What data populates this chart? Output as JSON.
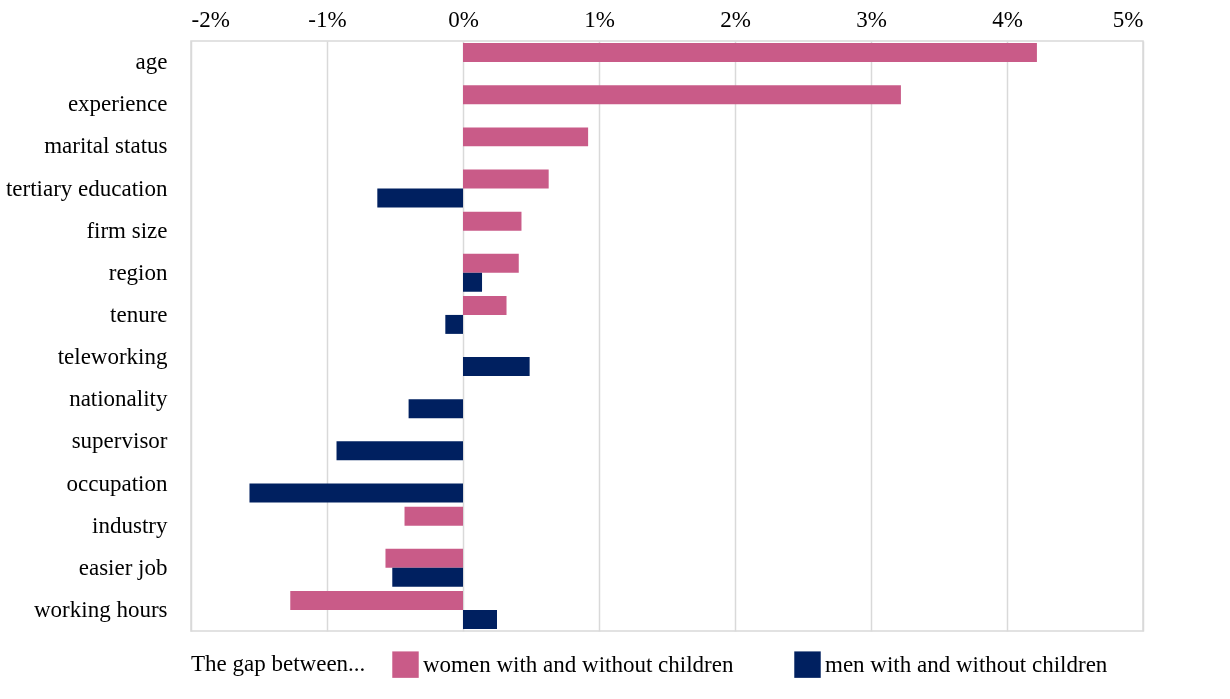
{
  "chart_data": {
    "type": "bar",
    "orientation": "horizontal",
    "categories": [
      "age",
      "experience",
      "marital status",
      "tertiary education",
      "firm size",
      "region",
      "tenure",
      "teleworking",
      "nationality",
      "supervisor",
      "occupation",
      "industry",
      "easier job",
      "working hours"
    ],
    "series": [
      {
        "name": "women with and without children",
        "color": "#c95b88",
        "values": [
          4.22,
          3.22,
          0.92,
          0.63,
          0.43,
          0.41,
          0.32,
          null,
          null,
          null,
          null,
          -0.43,
          -0.57,
          -1.27
        ]
      },
      {
        "name": "men with and without children",
        "color": "#002060",
        "values": [
          null,
          null,
          null,
          -0.63,
          null,
          0.14,
          -0.13,
          0.49,
          -0.4,
          -0.93,
          -1.57,
          null,
          -0.52,
          0.25
        ]
      }
    ],
    "xlim": [
      -2,
      5
    ],
    "xticks": [
      {
        "value": -2,
        "label": "-2%"
      },
      {
        "value": -1,
        "label": "-1%"
      },
      {
        "value": 0,
        "label": "0%"
      },
      {
        "value": 1,
        "label": "1%"
      },
      {
        "value": 2,
        "label": "2%"
      },
      {
        "value": 3,
        "label": "3%"
      },
      {
        "value": 4,
        "label": "4%"
      },
      {
        "value": 5,
        "label": "5%"
      }
    ],
    "grid": "x",
    "legend": "bottom",
    "legend_title": "The gap between..."
  }
}
